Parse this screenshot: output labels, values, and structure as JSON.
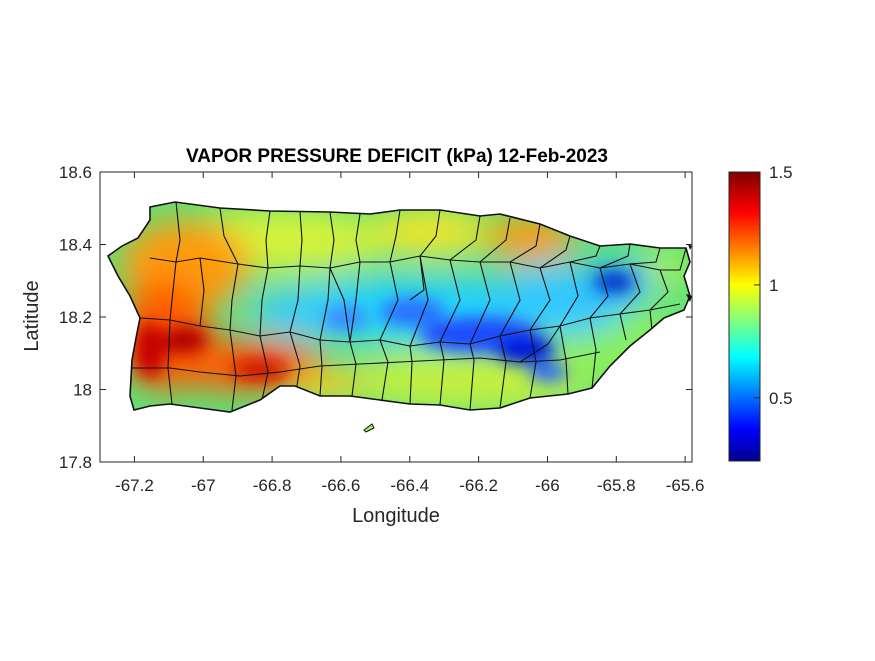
{
  "title": "VAPOR PRESSURE DEFICIT (kPa) 12-Feb-2023",
  "xlabel": "Longitude",
  "ylabel": "Latitude",
  "x_ticks": [
    "-67.2",
    "-67",
    "-66.8",
    "-66.6",
    "-66.4",
    "-66.2",
    "-66",
    "-65.8",
    "-65.6"
  ],
  "y_ticks": [
    "18.6",
    "18.4",
    "18.2",
    "18",
    "17.8"
  ],
  "colorbar": {
    "ticks": [
      "1.5",
      "1",
      "0.5"
    ],
    "colormap": "jet",
    "range": [
      0.22,
      1.5
    ]
  },
  "map": {
    "region": "Puerto Rico",
    "xlim": [
      -67.3,
      -65.58
    ],
    "ylim": [
      17.8,
      18.6
    ],
    "variable": "vapor pressure deficit (kPa)",
    "features": [
      "municipality boundaries",
      "coastline"
    ]
  }
}
